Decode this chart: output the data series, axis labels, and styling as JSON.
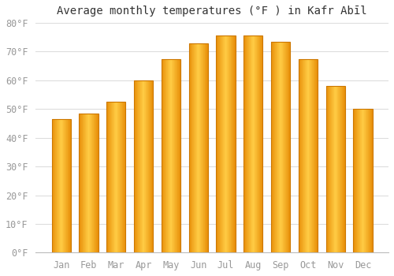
{
  "title": "Average monthly temperatures (°F ) in Kafr Abīl",
  "months": [
    "Jan",
    "Feb",
    "Mar",
    "Apr",
    "May",
    "Jun",
    "Jul",
    "Aug",
    "Sep",
    "Oct",
    "Nov",
    "Dec"
  ],
  "values": [
    46.5,
    48.5,
    52.5,
    60.0,
    67.5,
    73.0,
    75.5,
    75.5,
    73.5,
    67.5,
    58.0,
    50.0
  ],
  "bar_color_left": "#E8900A",
  "bar_color_mid": "#FFCC44",
  "bar_color_right": "#E8900A",
  "bar_edge_color": "#CC7700",
  "background_color": "#FFFFFF",
  "plot_bg_color": "#FFFFFF",
  "grid_color": "#DDDDDD",
  "ylim": [
    0,
    80
  ],
  "yticks": [
    0,
    10,
    20,
    30,
    40,
    50,
    60,
    70,
    80
  ],
  "ytick_labels": [
    "0°F",
    "10°F",
    "20°F",
    "30°F",
    "40°F",
    "50°F",
    "60°F",
    "70°F",
    "80°F"
  ],
  "font_family": "monospace",
  "title_fontsize": 10,
  "tick_fontsize": 8.5,
  "tick_color": "#999999",
  "figsize": [
    5.0,
    3.5
  ],
  "dpi": 100,
  "bar_width": 0.7,
  "n_gradient_strips": 40
}
